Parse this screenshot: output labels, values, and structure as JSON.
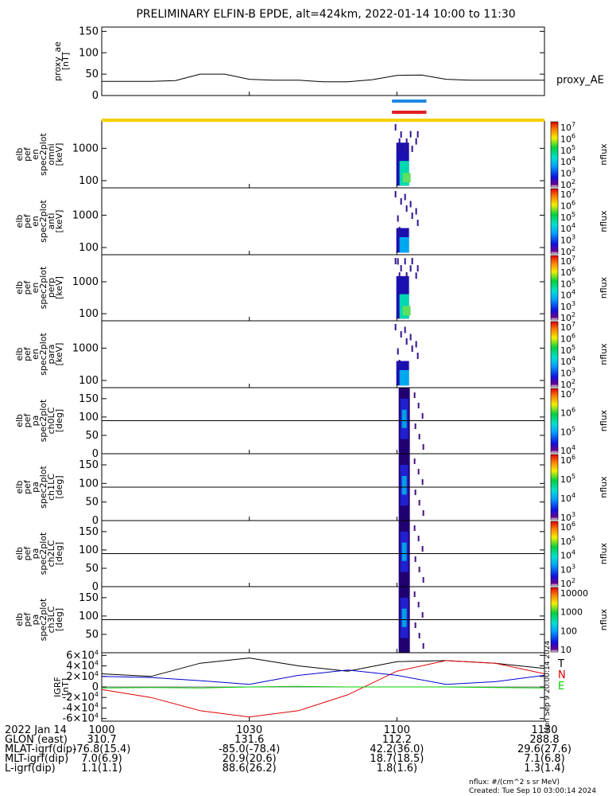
{
  "title": "PRELIMINARY ELFIN-B EPDE, alt=424km, 2022-01-14 10:00 to 11:30",
  "chart_data": {
    "type": "heatmap",
    "time_range": [
      "2022-01-14 10:00",
      "2022-01-14 11:30"
    ],
    "panels": [
      {
        "id": "proxy_ae",
        "type": "line",
        "ylabel_lines": [
          "proxy_ae",
          "[nT]"
        ],
        "yticks": [
          "0",
          "50",
          "100",
          "150"
        ],
        "ylim": [
          0,
          160
        ],
        "legend": "proxy_AE",
        "x_min": [
          0,
          5,
          10,
          15,
          20,
          25,
          30,
          35,
          40,
          45,
          50,
          55,
          60,
          65,
          70,
          75,
          80,
          85,
          90
        ],
        "values": [
          33,
          33,
          33,
          35,
          50,
          50,
          38,
          36,
          36,
          32,
          32,
          37,
          47,
          48,
          38,
          36,
          36,
          36,
          36
        ]
      },
      {
        "id": "en_omni",
        "ylabel_lines": [
          "elb",
          "pef",
          "en",
          "spec2plot",
          "omni",
          "[keV]"
        ],
        "yticks": [
          "100",
          "1000"
        ],
        "scale": "log",
        "ylim": [
          60,
          7000
        ],
        "colorbar_ticks": [
          "10^7",
          "10^6",
          "10^5",
          "10^4",
          "10^3",
          "10^2"
        ],
        "colorbar_label": "nflux"
      },
      {
        "id": "en_anti",
        "ylabel_lines": [
          "elb",
          "pef",
          "en",
          "spec2plot",
          "anti",
          "[keV]"
        ],
        "yticks": [
          "100",
          "1000"
        ],
        "scale": "log",
        "ylim": [
          60,
          7000
        ],
        "colorbar_ticks": [
          "10^7",
          "10^6",
          "10^5",
          "10^4",
          "10^3",
          "10^2"
        ],
        "colorbar_label": "nflux"
      },
      {
        "id": "en_perp",
        "ylabel_lines": [
          "elb",
          "pef",
          "en",
          "spec2plot",
          "perp",
          "[keV]"
        ],
        "yticks": [
          "100",
          "1000"
        ],
        "scale": "log",
        "ylim": [
          60,
          7000
        ],
        "colorbar_ticks": [
          "10^7",
          "10^6",
          "10^5",
          "10^4",
          "10^3",
          "10^2"
        ],
        "colorbar_label": "nflux"
      },
      {
        "id": "en_para",
        "ylabel_lines": [
          "elb",
          "pef",
          "en",
          "spec2plot",
          "para",
          "[keV]"
        ],
        "yticks": [
          "100",
          "1000"
        ],
        "scale": "log",
        "ylim": [
          60,
          7000
        ],
        "colorbar_ticks": [
          "10^7",
          "10^6",
          "10^5",
          "10^4",
          "10^3",
          "10^2"
        ],
        "colorbar_label": "nflux"
      },
      {
        "id": "pa_ch0LC",
        "ylabel_lines": [
          "elb",
          "pef",
          "pa",
          "spec2plot",
          "ch0LC",
          "[deg]"
        ],
        "yticks": [
          "0",
          "50",
          "100",
          "150"
        ],
        "ylim": [
          0,
          180
        ],
        "colorbar_ticks": [
          "10^7",
          "10^6",
          "10^5",
          "10^4"
        ],
        "colorbar_label": "nflux"
      },
      {
        "id": "pa_ch1LC",
        "ylabel_lines": [
          "elb",
          "pef",
          "pa",
          "spec2plot",
          "ch1LC",
          "[deg]"
        ],
        "yticks": [
          "0",
          "50",
          "100",
          "150"
        ],
        "ylim": [
          0,
          180
        ],
        "colorbar_ticks": [
          "10^6",
          "10^5",
          "10^4",
          "10^3"
        ],
        "colorbar_label": "nflux"
      },
      {
        "id": "pa_ch2LC",
        "ylabel_lines": [
          "elb",
          "pef",
          "pa",
          "spec2plot",
          "ch2LC",
          "[deg]"
        ],
        "yticks": [
          "0",
          "50",
          "100",
          "150"
        ],
        "ylim": [
          0,
          180
        ],
        "colorbar_ticks": [
          "10^6",
          "10^5",
          "10^4",
          "10^3",
          "10^2"
        ],
        "colorbar_label": "nflux"
      },
      {
        "id": "pa_ch3LC",
        "ylabel_lines": [
          "elb",
          "pef",
          "pa",
          "spec2plot",
          "ch3LC",
          "[deg]"
        ],
        "yticks": [
          "50",
          "100",
          "150"
        ],
        "ylim": [
          0,
          180
        ],
        "colorbar_ticks": [
          "10000",
          "1000",
          "100",
          "10"
        ],
        "colorbar_label": "nflux"
      },
      {
        "id": "igrf",
        "type": "line",
        "ylabel_lines": [
          "IGRF",
          "[nT]"
        ],
        "yticks": [
          "6x10^4",
          "4x10^4",
          "2x10^4",
          "0",
          "-2x10^4",
          "-4x10^4",
          "-6x10^4"
        ],
        "ylim": [
          -65000,
          65000
        ],
        "side_text": "Mon Sep 9 20:00:14 2024",
        "series": [
          {
            "name": "T",
            "color": "#000000",
            "x_min": [
              0,
              10,
              20,
              30,
              40,
              50,
              60,
              70,
              80,
              90
            ],
            "values": [
              25000,
              20000,
              45000,
              55000,
              40000,
              30000,
              48000,
              50000,
              45000,
              35000
            ]
          },
          {
            "name": "N",
            "color": "#e00000",
            "x_min": [
              0,
              10,
              20,
              30,
              40,
              50,
              60,
              70,
              80,
              90
            ],
            "values": [
              -5000,
              -20000,
              -45000,
              -57000,
              -45000,
              -15000,
              30000,
              50000,
              45000,
              25000
            ]
          },
          {
            "name": "E",
            "color": "#00d000",
            "x_min": [
              0,
              10,
              20,
              30,
              40,
              50,
              60,
              70,
              80,
              90
            ],
            "values": [
              -2000,
              -1000,
              -2000,
              0,
              1000,
              0,
              0,
              0,
              -1000,
              -2000
            ]
          },
          {
            "name": "",
            "color": "#0000d0",
            "x_min": [
              0,
              10,
              20,
              30,
              40,
              50,
              60,
              70,
              80,
              90
            ],
            "values": [
              20000,
              18000,
              12000,
              5000,
              22000,
              32000,
              22000,
              5000,
              10000,
              22000
            ]
          }
        ]
      }
    ],
    "time_axis": {
      "rows": [
        {
          "label": "2022 Jan 14",
          "values": [
            "1000",
            "1030",
            "1100",
            "1130"
          ]
        },
        {
          "label": "GLON (east)",
          "values": [
            "310.7",
            "131.6",
            "112.2",
            "288.8"
          ]
        },
        {
          "label": "MLAT-igrf(dip)",
          "values": [
            "-76.8(15.4)",
            "-85.0(-78.4)",
            "42.2(36.0)",
            "29.6(27.6)"
          ]
        },
        {
          "label": "MLT-igrf(dip)",
          "values": [
            "7.0(6.9)",
            "20.9(20.6)",
            "18.7(18.5)",
            "7.1(6.8)"
          ]
        },
        {
          "label": "L-igrf(dip)",
          "values": [
            "1.1(1.1)",
            "88.6(26.2)",
            "1.8(1.6)",
            "1.3(1.4)"
          ]
        }
      ]
    },
    "bars": [
      {
        "color": "#1e88e5",
        "start_min": 59,
        "end_min": 66
      },
      {
        "color": "#e02020",
        "start_min": 59,
        "end_min": 66
      },
      {
        "color": "#f5d000",
        "start_min": 0,
        "end_min": 90
      }
    ]
  },
  "footer": {
    "units": "nflux: #/(cm^2 s sr MeV)",
    "created": "Created: Tue Sep 10 03:00:14 2024"
  }
}
